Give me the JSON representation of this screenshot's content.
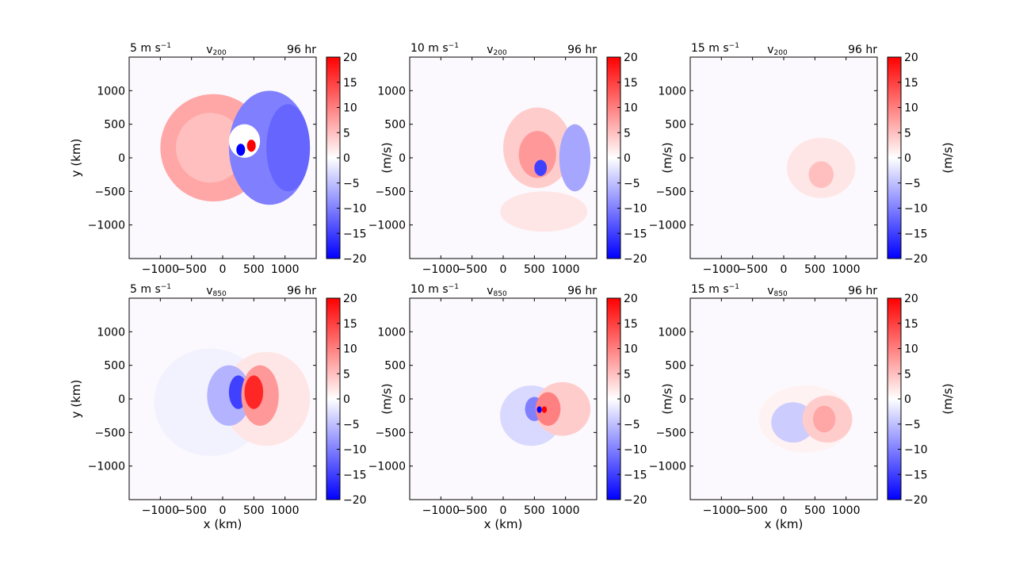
{
  "chart_data": {
    "type": "heatmap",
    "x_ticks": [
      "−1000",
      "−500",
      "0",
      "500",
      "1000"
    ],
    "x_tick_values": [
      -1000,
      -500,
      0,
      500,
      1000
    ],
    "y_ticks": [
      "1000",
      "500",
      "0",
      "−500",
      "−1000"
    ],
    "y_tick_values": [
      1000,
      500,
      0,
      -500,
      -1000
    ],
    "xlim": [
      -1500,
      1500
    ],
    "ylim": [
      -1500,
      1500
    ],
    "xlabel": "x (km)",
    "ylabel": "y (km)",
    "colorbar": {
      "label": "(m/s)",
      "ticks": [
        "20",
        "15",
        "10",
        "5",
        "0",
        "−5",
        "−10",
        "−15",
        "−20"
      ],
      "tick_values": [
        20,
        15,
        10,
        5,
        0,
        -5,
        -10,
        -15,
        -20
      ],
      "range": [
        -20,
        20
      ],
      "colormap": "bwr",
      "color_min": "#0000ff",
      "color_mid": "#ffffff",
      "color_max": "#ff0000"
    },
    "panels": [
      {
        "name": "p1",
        "title_left": "5 m s",
        "title_left_sup": "−1",
        "title_center": "v",
        "title_center_sub": "200",
        "title_right": "96 hr",
        "show_xlabel": false,
        "show_ylabel": true,
        "features": [
          {
            "kind": "blob",
            "cx": -150,
            "cy": 150,
            "rx": 850,
            "ry": 800,
            "value": 7
          },
          {
            "kind": "blob",
            "cx": -200,
            "cy": 150,
            "rx": 550,
            "ry": 520,
            "value": 5
          },
          {
            "kind": "blob",
            "cx": 750,
            "cy": 150,
            "rx": 650,
            "ry": 850,
            "value": -10
          },
          {
            "kind": "blob",
            "cx": 1050,
            "cy": 150,
            "rx": 350,
            "ry": 650,
            "value": -12
          },
          {
            "kind": "blob",
            "cx": 350,
            "cy": 250,
            "rx": 250,
            "ry": 250,
            "value": 0
          },
          {
            "kind": "blob",
            "cx": 290,
            "cy": 120,
            "rx": 70,
            "ry": 90,
            "value": -20
          },
          {
            "kind": "blob",
            "cx": 460,
            "cy": 180,
            "rx": 70,
            "ry": 90,
            "value": 20
          }
        ]
      },
      {
        "name": "p2",
        "title_left": "10 m s",
        "title_left_sup": "−1",
        "title_center": "v",
        "title_center_sub": "200",
        "title_right": "96 hr",
        "show_xlabel": false,
        "show_ylabel": false,
        "features": [
          {
            "kind": "blob",
            "cx": 550,
            "cy": 150,
            "rx": 550,
            "ry": 600,
            "value": 4
          },
          {
            "kind": "blob",
            "cx": 550,
            "cy": 50,
            "rx": 300,
            "ry": 350,
            "value": 8
          },
          {
            "kind": "blob",
            "cx": 1150,
            "cy": 0,
            "rx": 250,
            "ry": 500,
            "value": -7
          },
          {
            "kind": "blob",
            "cx": 600,
            "cy": -150,
            "rx": 100,
            "ry": 120,
            "value": -15
          },
          {
            "kind": "blob",
            "cx": 650,
            "cy": -800,
            "rx": 700,
            "ry": 300,
            "value": 2
          }
        ]
      },
      {
        "name": "p3",
        "title_left": "15 m s",
        "title_left_sup": "−1",
        "title_center": "v",
        "title_center_sub": "200",
        "title_right": "96 hr",
        "show_xlabel": false,
        "show_ylabel": false,
        "features": [
          {
            "kind": "blob",
            "cx": 600,
            "cy": -150,
            "rx": 550,
            "ry": 450,
            "value": 2
          },
          {
            "kind": "blob",
            "cx": 600,
            "cy": -250,
            "rx": 200,
            "ry": 200,
            "value": 5
          }
        ]
      },
      {
        "name": "p4",
        "title_left": "5 m s",
        "title_left_sup": "−1",
        "title_center": "v",
        "title_center_sub": "850",
        "title_right": "96 hr",
        "show_xlabel": true,
        "show_ylabel": true,
        "features": [
          {
            "kind": "blob",
            "cx": -200,
            "cy": -50,
            "rx": 900,
            "ry": 800,
            "value": -1
          },
          {
            "kind": "blob",
            "cx": 700,
            "cy": 0,
            "rx": 700,
            "ry": 700,
            "value": 2
          },
          {
            "kind": "blob",
            "cx": 100,
            "cy": 50,
            "rx": 350,
            "ry": 450,
            "value": -6
          },
          {
            "kind": "blob",
            "cx": 250,
            "cy": 100,
            "rx": 150,
            "ry": 250,
            "value": -15
          },
          {
            "kind": "blob",
            "cx": 600,
            "cy": 50,
            "rx": 300,
            "ry": 450,
            "value": 8
          },
          {
            "kind": "blob",
            "cx": 500,
            "cy": 100,
            "rx": 150,
            "ry": 250,
            "value": 17
          }
        ]
      },
      {
        "name": "p5",
        "title_left": "10 m s",
        "title_left_sup": "−1",
        "title_center": "v",
        "title_center_sub": "850",
        "title_right": "96 hr",
        "show_xlabel": true,
        "show_ylabel": false,
        "features": [
          {
            "kind": "blob",
            "cx": 450,
            "cy": -250,
            "rx": 500,
            "ry": 450,
            "value": -3
          },
          {
            "kind": "blob",
            "cx": 950,
            "cy": -150,
            "rx": 450,
            "ry": 400,
            "value": 4
          },
          {
            "kind": "blob",
            "cx": 500,
            "cy": -150,
            "rx": 150,
            "ry": 180,
            "value": -10
          },
          {
            "kind": "blob",
            "cx": 720,
            "cy": -150,
            "rx": 200,
            "ry": 250,
            "value": 10
          },
          {
            "kind": "blob",
            "cx": 580,
            "cy": -160,
            "rx": 40,
            "ry": 50,
            "value": -20
          },
          {
            "kind": "blob",
            "cx": 660,
            "cy": -160,
            "rx": 40,
            "ry": 50,
            "value": 20
          }
        ]
      },
      {
        "name": "p6",
        "title_left": "15 m s",
        "title_left_sup": "−1",
        "title_center": "v",
        "title_center_sub": "850",
        "title_right": "96 hr",
        "show_xlabel": true,
        "show_ylabel": false,
        "features": [
          {
            "kind": "blob",
            "cx": 350,
            "cy": -300,
            "rx": 750,
            "ry": 500,
            "value": 1
          },
          {
            "kind": "blob",
            "cx": 150,
            "cy": -350,
            "rx": 350,
            "ry": 300,
            "value": -4
          },
          {
            "kind": "blob",
            "cx": 700,
            "cy": -300,
            "rx": 400,
            "ry": 350,
            "value": 4
          },
          {
            "kind": "blob",
            "cx": 650,
            "cy": -300,
            "rx": 180,
            "ry": 200,
            "value": 7
          }
        ]
      }
    ]
  }
}
